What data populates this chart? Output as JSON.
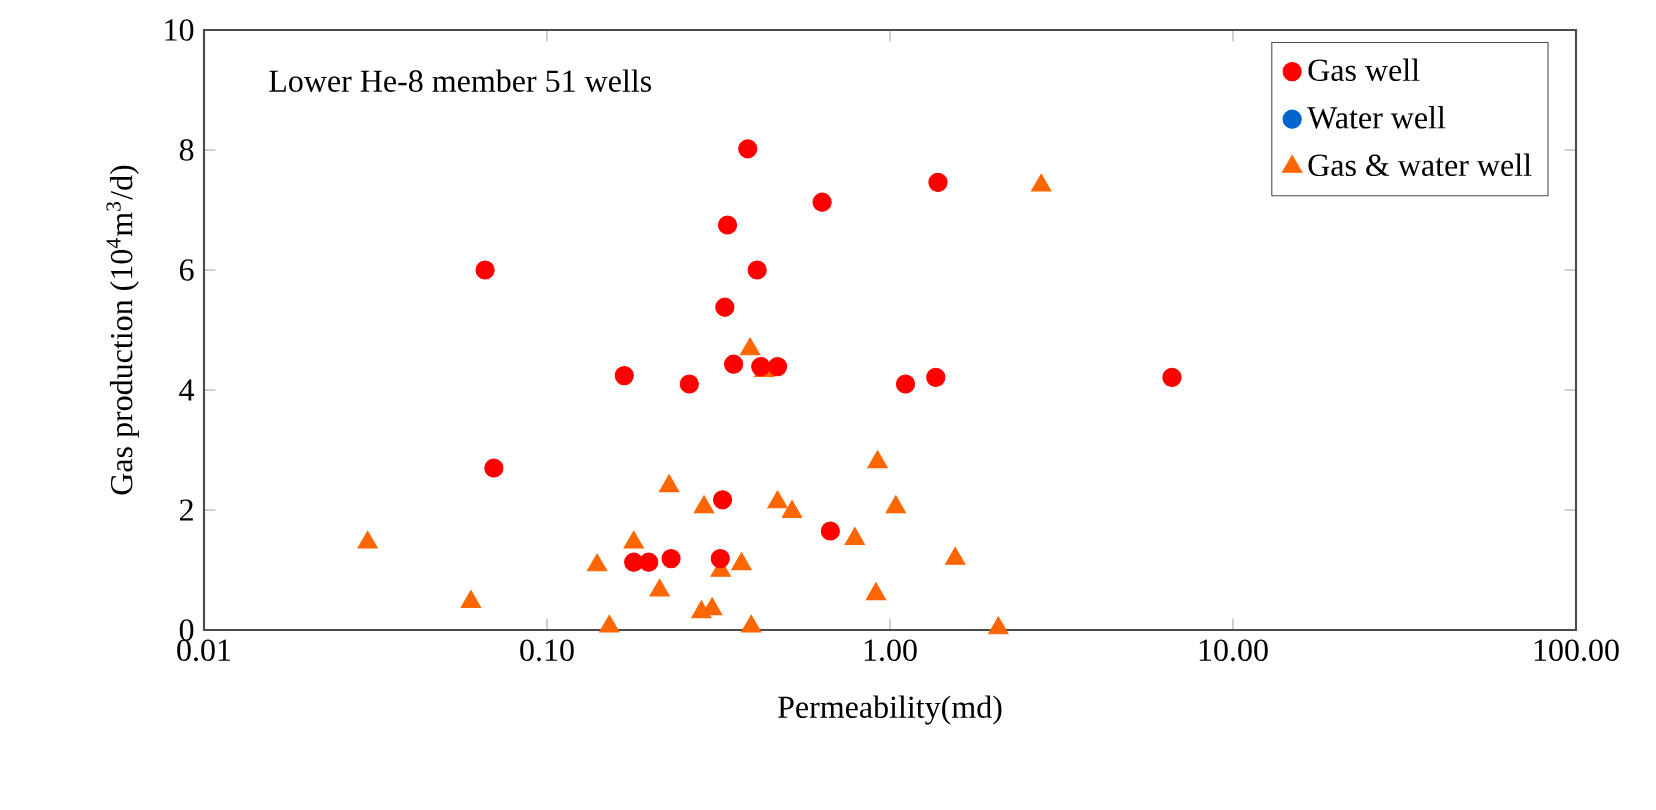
{
  "chart_data": {
    "type": "scatter",
    "xlabel": "Permeability(md)",
    "ylabel": "Gas production (10$^{4}$m$^{3}$/d)",
    "annotations": [
      "Lower He-8 member 51 wells"
    ],
    "log": "x",
    "xlim": [
      0.01,
      100
    ],
    "ylim": [
      0,
      10
    ],
    "xticks": [
      {
        "value": 0.01,
        "label": "0.01"
      },
      {
        "value": 0.1,
        "label": "0.10"
      },
      {
        "value": 1,
        "label": "1.00"
      },
      {
        "value": 10,
        "label": "10.00"
      },
      {
        "value": 100,
        "label": "100.00"
      }
    ],
    "yticks": [
      0,
      2,
      4,
      6,
      8,
      10
    ],
    "grid": false,
    "legend": "top right",
    "series": [
      {
        "name": "Gas well",
        "color": "#ff0000",
        "marker": "circle",
        "x": [
          0.066,
          0.07,
          0.168,
          0.26,
          0.33,
          0.336,
          0.385,
          0.41,
          0.35,
          0.42,
          0.47,
          0.634,
          1.38,
          1.11,
          1.36,
          6.64,
          0.325,
          0.67,
          0.179,
          0.198,
          0.23,
          0.32
        ],
        "values": [
          6.0,
          2.7,
          4.24,
          4.1,
          5.38,
          6.75,
          8.02,
          6.0,
          4.43,
          4.39,
          4.39,
          7.13,
          7.46,
          4.1,
          4.21,
          4.21,
          2.17,
          1.65,
          1.13,
          1.13,
          1.19,
          1.19
        ]
      },
      {
        "name": "Water well",
        "color": "#0066cc",
        "marker": "circle"
      },
      {
        "name": "Gas & water well",
        "color": "#ff6600",
        "marker": "triangle",
        "x": [
          0.03,
          0.06,
          0.14,
          0.152,
          0.179,
          0.213,
          0.227,
          0.282,
          0.303,
          0.287,
          0.321,
          0.369,
          0.391,
          0.394,
          0.43,
          0.47,
          0.518,
          0.79,
          0.91,
          0.92,
          1.04,
          1.55,
          2.07,
          2.76
        ],
        "values": [
          1.46,
          0.47,
          1.08,
          0.06,
          1.46,
          0.66,
          2.4,
          0.3,
          0.35,
          2.05,
          0.99,
          1.1,
          4.68,
          0.06,
          4.32,
          2.13,
          1.97,
          1.52,
          0.6,
          2.8,
          2.05,
          1.19,
          0.03,
          7.41
        ]
      }
    ]
  }
}
